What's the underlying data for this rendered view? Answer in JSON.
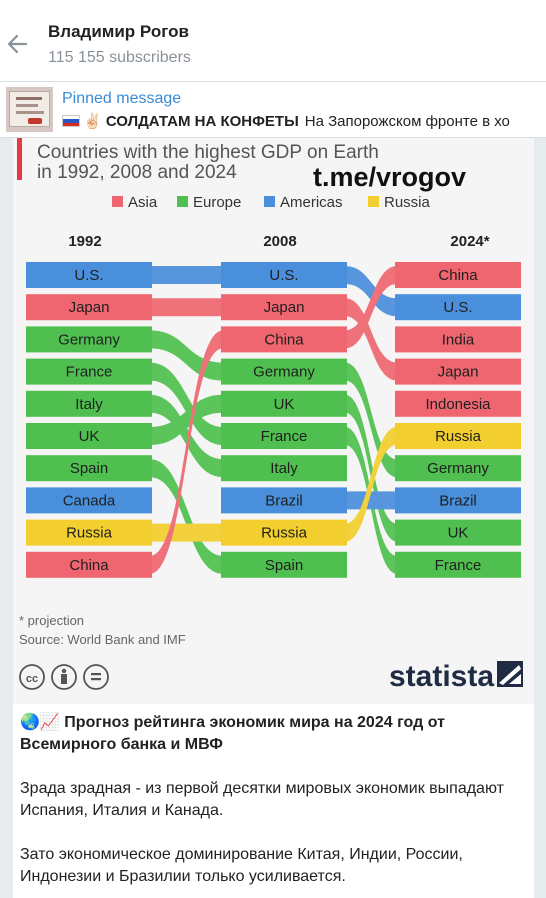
{
  "header": {
    "channel_name": "Владимир Рогов",
    "subscribers": "115 155 subscribers"
  },
  "pinned": {
    "label": "Pinned message",
    "title": "✌🏻 СОЛДАТАМ НА КОНФЕТЫ",
    "preview": "На Запорожском фронте в хо"
  },
  "post": {
    "headline": "🌏📈 Прогноз рейтинга экономик мира на 2024 год от Всемирного банка и МВФ",
    "paragraph_1": "Зрада зрадная - из первой десятки мировых экономик выпадают Испания, Италия и Канада.",
    "paragraph_2": "Зато экономическое доминирование Китая, Индии, России, Индонезии и Бразилии только усиливается."
  },
  "colors": {
    "accent_link": "#3a8bd6",
    "asia": "#ef6670",
    "europe": "#4fc04f",
    "americas": "#4a8fdc",
    "russia": "#f2cf2e"
  },
  "chart_data": {
    "type": "table",
    "title_line1": "Countries with the highest GDP on Earth",
    "title_line2": "in 1992, 2008 and 2024",
    "watermark": "t.me/vrogov",
    "legend": [
      {
        "name": "Asia",
        "color": "#ef6670"
      },
      {
        "name": "Europe",
        "color": "#4fc04f"
      },
      {
        "name": "Americas",
        "color": "#4a8fdc"
      },
      {
        "name": "Russia",
        "color": "#f2cf2e"
      }
    ],
    "columns": [
      "1992",
      "2008",
      "2024*"
    ],
    "rankings": [
      [
        "U.S.",
        "Japan",
        "Germany",
        "France",
        "Italy",
        "UK",
        "Spain",
        "Canada",
        "Russia",
        "China"
      ],
      [
        "U.S.",
        "Japan",
        "China",
        "Germany",
        "UK",
        "France",
        "Italy",
        "Brazil",
        "Russia",
        "Spain"
      ],
      [
        "China",
        "U.S.",
        "India",
        "Japan",
        "Indonesia",
        "Russia",
        "Germany",
        "Brazil",
        "UK",
        "France"
      ]
    ],
    "regions": {
      "U.S.": "americas",
      "Japan": "asia",
      "Germany": "europe",
      "France": "europe",
      "Italy": "europe",
      "UK": "europe",
      "Spain": "europe",
      "Canada": "americas",
      "Russia": "russia",
      "China": "asia",
      "Brazil": "americas",
      "India": "asia",
      "Indonesia": "asia"
    },
    "footnote": "* projection",
    "source": "Source: World Bank and IMF",
    "brand": "statista",
    "license_icons": [
      "cc-icon",
      "attribution-icon",
      "noderivs-icon"
    ]
  }
}
